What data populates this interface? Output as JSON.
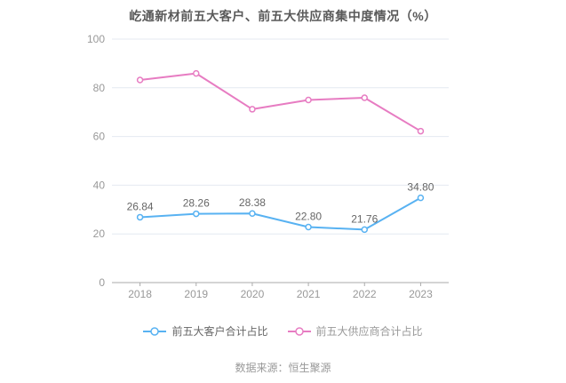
{
  "title": "屹通新材前五大客户、前五大供应商集中度情况（%）",
  "source": "数据来源：恒生聚源",
  "colors": {
    "title_text": "#595959",
    "grid_line": "#e4eaf1",
    "axis_line": "#aaaaaa",
    "axis_label": "#999999",
    "data_label": "#666666",
    "background": "#ffffff"
  },
  "chart_data": {
    "type": "line",
    "title": "屹通新材前五大客户、前五大供应商集中度情况（%）",
    "categories": [
      "2018",
      "2019",
      "2020",
      "2021",
      "2022",
      "2023"
    ],
    "series": [
      {
        "name": "前五大客户合计占比",
        "color": "#58b2f2",
        "values": [
          26.84,
          28.26,
          28.38,
          22.8,
          21.76,
          34.8
        ],
        "display_labels": [
          "26.84",
          "28.26",
          "28.38",
          "22.80",
          "21.76",
          "34.80"
        ],
        "show_labels": true,
        "legend_text_color": "#666666"
      },
      {
        "name": "前五大供应商合计占比",
        "color": "#e77cc2",
        "values": [
          83.2,
          85.9,
          71.2,
          75.0,
          75.9,
          62.2
        ],
        "display_labels": [],
        "show_labels": false,
        "legend_text_color": "#999999"
      }
    ],
    "xlabel": "",
    "ylabel": "",
    "ylim": [
      0,
      100
    ],
    "yticks": [
      0,
      20,
      40,
      60,
      80,
      100
    ],
    "grid": true,
    "legend_position": "bottom"
  }
}
